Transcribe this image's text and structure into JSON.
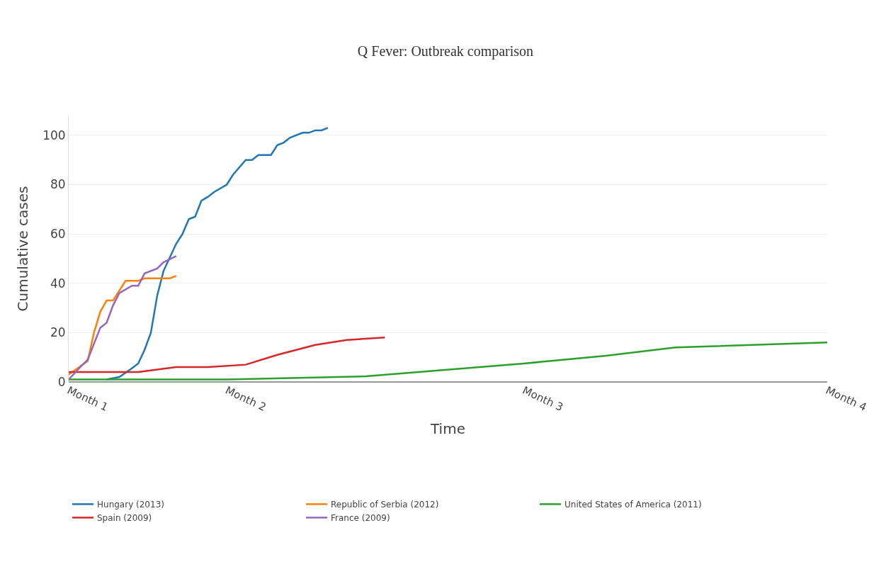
{
  "chart_data": {
    "type": "line",
    "title": "Q Fever: Outbreak comparison",
    "xlabel": "Time",
    "ylabel": "Cumulative cases",
    "categories": [
      "Month 1",
      null,
      null,
      null,
      null,
      null,
      null,
      null,
      null,
      null,
      null,
      null,
      null,
      null,
      null,
      null,
      null,
      null,
      null,
      null,
      null,
      null,
      null,
      null,
      null,
      "Month 2",
      null,
      null,
      null,
      null,
      null,
      null,
      null,
      null,
      null,
      null,
      null,
      null,
      null,
      null,
      null,
      null,
      null,
      null,
      null,
      null,
      null,
      null,
      null,
      null,
      null,
      null,
      null,
      null,
      null,
      null,
      null,
      null,
      null,
      null,
      null,
      null,
      null,
      null,
      null,
      null,
      null,
      null,
      null,
      null,
      null,
      null,
      "Month 3",
      null,
      null,
      null,
      null,
      null,
      null,
      null,
      null,
      null,
      null,
      null,
      null,
      null,
      null,
      null,
      null,
      null,
      null,
      null,
      null,
      null,
      null,
      null,
      null,
      null,
      null,
      null,
      null,
      null,
      null,
      null,
      null,
      null,
      null,
      null,
      null,
      null,
      null,
      null,
      null,
      null,
      null,
      null,
      null,
      null,
      null,
      null,
      "Month 4"
    ],
    "ylim": [
      0,
      108
    ],
    "yticks": [
      0,
      20,
      40,
      60,
      80,
      100
    ],
    "grid": "y",
    "legend": "bottom",
    "line_style": "solid",
    "marker": "none",
    "series": [
      {
        "name": "Hungary (2013)",
        "color": "#1f77b4",
        "values": [
          null,
          null,
          null,
          null,
          null,
          null,
          1,
          null,
          2,
          null,
          5.5,
          7.5,
          13,
          20,
          35,
          45,
          null,
          56,
          60,
          66,
          67,
          73.5,
          75,
          77,
          null,
          80,
          84,
          null,
          90,
          90,
          92,
          null,
          92,
          96,
          97,
          99,
          null,
          101,
          101,
          102,
          102,
          103,
          null,
          null,
          null,
          null,
          null,
          null,
          null,
          null,
          null,
          null,
          null,
          null,
          null,
          null,
          null,
          null,
          null,
          null,
          null,
          null,
          null,
          null,
          null,
          null,
          null,
          null,
          null,
          null,
          null,
          null,
          null,
          null,
          null,
          null,
          null,
          null,
          null,
          null,
          null,
          null,
          null,
          null,
          null,
          null,
          null,
          null,
          null,
          null,
          null,
          null,
          null,
          null,
          null,
          null,
          null,
          null,
          null,
          null,
          null,
          null,
          null,
          null,
          null,
          null,
          null,
          null,
          null,
          null,
          null,
          null,
          null,
          null,
          null,
          null,
          null,
          null,
          null,
          null,
          null
        ]
      },
      {
        "name": "Republic of Serbia (2012)",
        "color": "#ff7f0e",
        "values": [
          3,
          null,
          null,
          8.5,
          20,
          28.5,
          33,
          33,
          null,
          41,
          null,
          41,
          42,
          null,
          null,
          null,
          42,
          43,
          null,
          null,
          null,
          null,
          null,
          null,
          null,
          null,
          null,
          null,
          null,
          null,
          null,
          null,
          null,
          null,
          null,
          null,
          null,
          null,
          null,
          null,
          null,
          null,
          null,
          null,
          null,
          null,
          null,
          null,
          null,
          null,
          null,
          null,
          null,
          null,
          null,
          null,
          null,
          null,
          null,
          null,
          null,
          null,
          null,
          null,
          null,
          null,
          null,
          null,
          null,
          null,
          null,
          null,
          null,
          null,
          null,
          null,
          null,
          null,
          null,
          null,
          null,
          null,
          null,
          null,
          null,
          null,
          null,
          null,
          null,
          null,
          null,
          null,
          null,
          null,
          null,
          null,
          null,
          null,
          null,
          null,
          null,
          null,
          null,
          null,
          null,
          null,
          null,
          null,
          null,
          null,
          null,
          null,
          null,
          null,
          null,
          null,
          null,
          null,
          null,
          null,
          null
        ]
      },
      {
        "name": "United States of America (2011)",
        "color": "#2ca02c",
        "values": [
          1,
          null,
          null,
          null,
          null,
          null,
          null,
          null,
          null,
          null,
          null,
          null,
          null,
          null,
          null,
          null,
          null,
          null,
          null,
          null,
          null,
          null,
          null,
          null,
          null,
          1,
          null,
          null,
          null,
          null,
          null,
          null,
          null,
          null,
          null,
          null,
          null,
          null,
          null,
          null,
          null,
          null,
          null,
          null,
          null,
          null,
          null,
          2.3,
          null,
          null,
          null,
          null,
          null,
          null,
          null,
          null,
          null,
          null,
          null,
          null,
          null,
          null,
          null,
          null,
          null,
          null,
          null,
          null,
          null,
          null,
          null,
          null,
          7.5,
          null,
          null,
          null,
          null,
          null,
          null,
          null,
          null,
          null,
          null,
          null,
          null,
          10.6,
          null,
          null,
          null,
          null,
          null,
          null,
          null,
          null,
          null,
          null,
          14,
          null,
          null,
          null,
          null,
          null,
          null,
          null,
          null,
          null,
          null,
          null,
          null,
          null,
          null,
          null,
          null,
          null,
          null,
          null,
          null,
          null,
          null,
          null,
          16
        ]
      },
      {
        "name": "Spain (2009)",
        "color": "#d62728",
        "values": [
          4,
          null,
          null,
          null,
          null,
          null,
          null,
          null,
          null,
          null,
          null,
          4,
          null,
          null,
          null,
          null,
          null,
          6,
          null,
          null,
          null,
          null,
          6,
          null,
          null,
          null,
          null,
          null,
          7,
          null,
          null,
          null,
          null,
          11,
          null,
          null,
          null,
          null,
          null,
          15,
          null,
          null,
          null,
          null,
          17,
          null,
          null,
          null,
          null,
          null,
          18,
          null,
          null,
          null,
          null,
          null,
          null,
          null,
          null,
          null,
          null,
          null,
          null,
          null,
          null,
          null,
          null,
          null,
          null,
          null,
          null,
          null,
          null,
          null,
          null,
          null,
          null,
          null,
          null,
          null,
          null,
          null,
          null,
          null,
          null,
          null,
          null,
          null,
          null,
          null,
          null,
          null,
          null,
          null,
          null,
          null,
          null,
          null,
          null,
          null,
          null,
          null,
          null,
          null,
          null,
          null,
          null,
          null,
          null,
          null,
          null,
          null,
          null,
          null,
          null,
          null,
          null,
          null,
          null,
          null,
          null
        ]
      },
      {
        "name": "France (2009)",
        "color": "#9467bd",
        "values": [
          1,
          null,
          6.5,
          9,
          null,
          22,
          24,
          31,
          36,
          null,
          39,
          39,
          44,
          null,
          46,
          48.5,
          null,
          51,
          null,
          null,
          null,
          null,
          null,
          null,
          null,
          null,
          null,
          null,
          null,
          null,
          null,
          null,
          null,
          null,
          null,
          null,
          null,
          null,
          null,
          null,
          null,
          null,
          null,
          null,
          null,
          null,
          null,
          null,
          null,
          null,
          null,
          null,
          null,
          null,
          null,
          null,
          null,
          null,
          null,
          null,
          null,
          null,
          null,
          null,
          null,
          null,
          null,
          null,
          null,
          null,
          null,
          null,
          null,
          null,
          null,
          null,
          null,
          null,
          null,
          null,
          null,
          null,
          null,
          null,
          null,
          null,
          null,
          null,
          null,
          null,
          null,
          null,
          null,
          null,
          null,
          null,
          null,
          null,
          null,
          null,
          null,
          null,
          null,
          null,
          null,
          null,
          null,
          null,
          null,
          null,
          null,
          null,
          null,
          null,
          null,
          null,
          null,
          null,
          null,
          null,
          null
        ]
      }
    ]
  }
}
